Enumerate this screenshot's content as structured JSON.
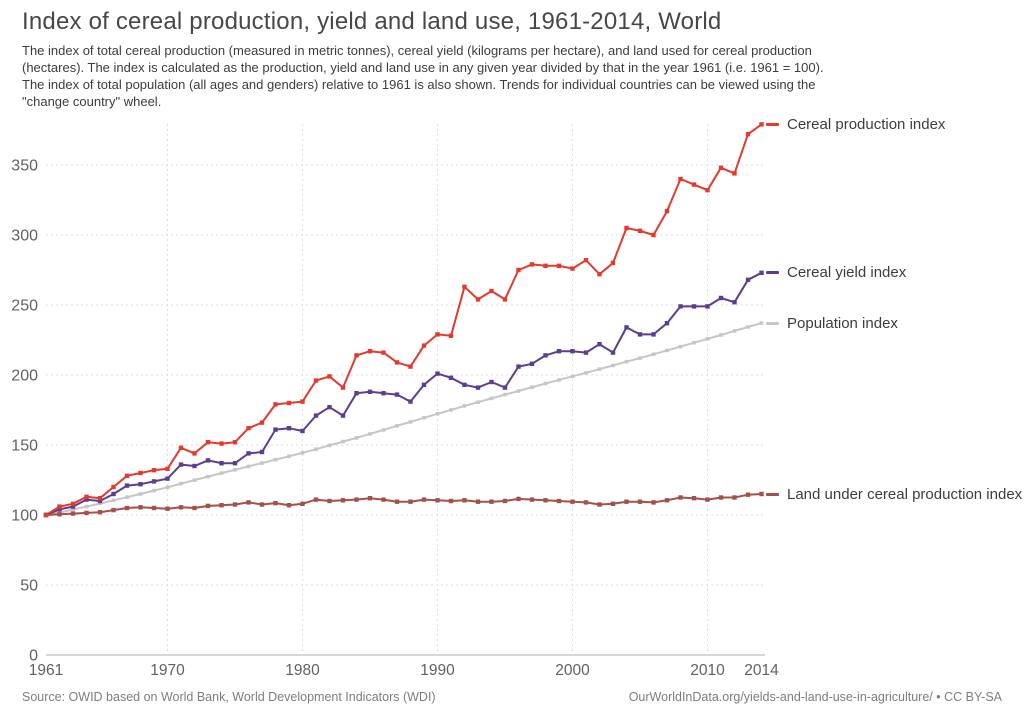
{
  "header": {
    "title": "Index of cereal production, yield and land use, 1961-2014, World",
    "subtitle_lines": [
      "The index of total cereal production (measured in metric tonnes), cereal yield (kilograms per hectare), and land used for cereal production",
      "(hectares). The index is calculated as the production, yield and land use in any given year divided by that in the year 1961 (i.e. 1961 = 100).",
      "The index of total population (all ages and genders) relative to 1961 is also shown. Trends for individual countries can be viewed using the",
      "\"change country\" wheel."
    ]
  },
  "footer": {
    "source": "Source: OWID based on World Bank, World Development Indicators (WDI)",
    "attribution": "OurWorldInData.org/yields-and-land-use-in-agriculture/ • CC BY-SA"
  },
  "chart_data": {
    "type": "line",
    "title": "Index of cereal production, yield and land use, 1961-2014, World",
    "xlabel": "",
    "ylabel": "",
    "x_range": [
      1961,
      2014
    ],
    "y_range": [
      0,
      390
    ],
    "grid": true,
    "legend_position": "right-of-line-end",
    "xticks": [
      1961,
      1970,
      1980,
      1990,
      2000,
      2010,
      2014
    ],
    "yticks": [
      0,
      50,
      100,
      150,
      200,
      250,
      300,
      350
    ],
    "x": [
      1961,
      1962,
      1963,
      1964,
      1965,
      1966,
      1967,
      1968,
      1969,
      1970,
      1971,
      1972,
      1973,
      1974,
      1975,
      1976,
      1977,
      1978,
      1979,
      1980,
      1981,
      1982,
      1983,
      1984,
      1985,
      1986,
      1987,
      1988,
      1989,
      1990,
      1991,
      1992,
      1993,
      1994,
      1995,
      1996,
      1997,
      1998,
      1999,
      2000,
      2001,
      2002,
      2003,
      2004,
      2005,
      2006,
      2007,
      2008,
      2009,
      2010,
      2011,
      2012,
      2013,
      2014
    ],
    "series": [
      {
        "name": "Cereal production index",
        "color": "#e23a2e",
        "values": [
          100,
          106,
          108,
          113,
          112,
          120,
          128,
          130,
          132,
          133,
          148,
          144,
          152,
          151,
          152,
          162,
          166,
          179,
          180,
          181,
          196,
          199,
          191,
          214,
          217,
          216,
          209,
          206,
          221,
          229,
          228,
          263,
          254,
          260,
          254,
          275,
          279,
          278,
          278,
          276,
          282,
          272,
          280,
          305,
          303,
          300,
          317,
          340,
          336,
          332,
          348,
          344,
          372,
          379
        ]
      },
      {
        "name": "Cereal yield index",
        "color": "#5b3e90",
        "values": [
          100,
          104,
          106,
          111,
          110,
          115,
          121,
          122,
          124,
          126,
          136,
          135,
          139,
          137,
          137,
          144,
          145,
          161,
          162,
          160,
          171,
          177,
          171,
          187,
          188,
          187,
          186,
          181,
          193,
          201,
          198,
          193,
          191,
          195,
          191,
          206,
          208,
          214,
          217,
          217,
          216,
          222,
          216,
          234,
          229,
          229,
          237,
          249,
          249,
          249,
          255,
          252,
          268,
          273
        ]
      },
      {
        "name": "Population index",
        "color": "#c6c6c6",
        "values": [
          100,
          101.7,
          103.9,
          106,
          108.2,
          110.5,
          112.7,
          115,
          117.4,
          119.8,
          122.4,
          124.9,
          127.4,
          129.9,
          132.3,
          134.7,
          137.1,
          139.5,
          141.9,
          144.4,
          147,
          149.7,
          152.4,
          155.1,
          157.9,
          160.8,
          163.7,
          166.5,
          169.4,
          172.3,
          175.1,
          177.9,
          180.6,
          183.3,
          186,
          188.6,
          191.3,
          193.9,
          196.5,
          199.1,
          201.6,
          204.2,
          206.8,
          209.5,
          212.1,
          214.8,
          217.6,
          220.3,
          223.1,
          225.8,
          228.6,
          231.5,
          234.3,
          237.1
        ]
      },
      {
        "name": "Land under cereal production index",
        "color": "#a1524a",
        "values": [
          100,
          100.5,
          101,
          101.5,
          102,
          103.5,
          105,
          105.5,
          105,
          104.5,
          105.5,
          105,
          106.5,
          107,
          107.5,
          109,
          107.5,
          108.5,
          107,
          108,
          111,
          110,
          110.5,
          111,
          112,
          111,
          109.5,
          109.5,
          111,
          110.5,
          110,
          110.5,
          109.5,
          109.5,
          110,
          111.5,
          111,
          110.5,
          110,
          109.5,
          109,
          107.5,
          108,
          109.5,
          109.5,
          109,
          110.5,
          112.5,
          112,
          111,
          112.5,
          112.5,
          114.5,
          115
        ]
      }
    ]
  }
}
